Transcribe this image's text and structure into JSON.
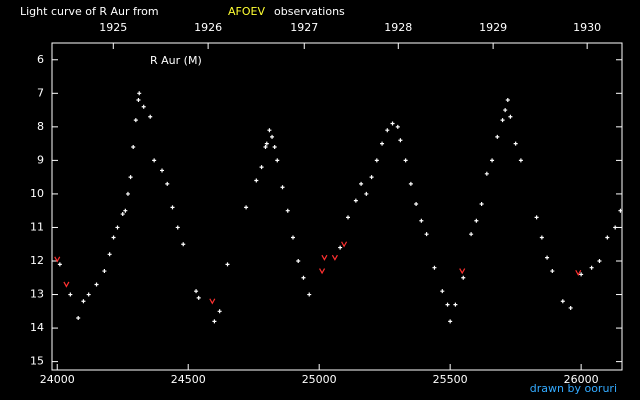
{
  "chart_data": {
    "type": "scatter",
    "title": "Light curve of R Aur from",
    "title_highlight": "AFOEV",
    "title_highlight_color": "#ffff33",
    "title_suffix": "observations",
    "annotation": "R Aur (M)",
    "credit": "drawn by ooruri",
    "xlim": [
      23980,
      26156
    ],
    "xticks": [
      24000,
      24500,
      25000,
      25500,
      26000
    ],
    "x2ticks": [
      {
        "value": 24214,
        "label": "1925"
      },
      {
        "value": 24576,
        "label": "1926"
      },
      {
        "value": 24943,
        "label": "1927"
      },
      {
        "value": 25302,
        "label": "1928"
      },
      {
        "value": 25664,
        "label": "1929"
      },
      {
        "value": 26023,
        "label": "1930"
      }
    ],
    "ylim": [
      5.5,
      15.25
    ],
    "y_inverted": true,
    "yticks": [
      6,
      7,
      8,
      9,
      10,
      11,
      12,
      13,
      14,
      15
    ],
    "series": [
      {
        "color": "#ffffff",
        "marker": "plus",
        "x": [
          24010,
          24050,
          24080,
          24100,
          24120,
          24150,
          24180,
          24200,
          24215,
          24230,
          24250,
          24260,
          24270,
          24280,
          24290,
          24300,
          24310,
          24313,
          24330,
          24355,
          24370,
          24400,
          24420,
          24440,
          24460,
          24481,
          24530,
          24540,
          24600,
          24620,
          24650,
          24721,
          24760,
          24780,
          24795,
          24800,
          24810,
          24820,
          24830,
          24840,
          24860,
          24880,
          24900,
          24920,
          24940,
          24962,
          25080,
          25110,
          25140,
          25160,
          25180,
          25200,
          25220,
          25240,
          25260,
          25280,
          25300,
          25310,
          25330,
          25350,
          25370,
          25390,
          25410,
          25440,
          25470,
          25490,
          25500,
          25520,
          25550,
          25580,
          25600,
          25620,
          25640,
          25660,
          25680,
          25700,
          25710,
          25720,
          25730,
          25750,
          25770,
          25830,
          25850,
          25870,
          25890,
          25930,
          25960,
          26000,
          26040,
          26070,
          26100,
          26130,
          26150
        ],
        "values": [
          12.1,
          13.0,
          13.7,
          13.2,
          13.0,
          12.7,
          12.3,
          11.8,
          11.3,
          11.0,
          10.6,
          10.5,
          10.0,
          9.5,
          8.6,
          7.8,
          7.2,
          7.0,
          7.4,
          7.7,
          9.0,
          9.3,
          9.7,
          10.4,
          11.0,
          11.5,
          12.9,
          13.1,
          13.8,
          13.5,
          12.1,
          10.4,
          9.6,
          9.2,
          8.6,
          8.5,
          8.1,
          8.3,
          8.6,
          9.0,
          9.8,
          10.5,
          11.3,
          12.0,
          12.5,
          13.0,
          11.6,
          10.7,
          10.2,
          9.7,
          10.0,
          9.5,
          9.0,
          8.5,
          8.1,
          7.9,
          8.0,
          8.4,
          9.0,
          9.7,
          10.3,
          10.8,
          11.2,
          12.2,
          12.9,
          13.3,
          13.8,
          13.3,
          12.5,
          11.2,
          10.8,
          10.3,
          9.4,
          9.0,
          8.3,
          7.8,
          7.5,
          7.2,
          7.7,
          8.5,
          9.0,
          10.7,
          11.3,
          11.9,
          12.3,
          13.2,
          13.4,
          12.4,
          12.2,
          12.0,
          11.3,
          11.0,
          10.5
        ]
      },
      {
        "color": "#ff3030",
        "marker": "v",
        "x": [
          24000,
          24035,
          24592,
          25011,
          25020,
          25060,
          25095,
          25546,
          25989
        ],
        "values": [
          11.95,
          12.7,
          13.2,
          12.3,
          11.9,
          11.9,
          11.5,
          12.3,
          12.35
        ]
      }
    ]
  }
}
